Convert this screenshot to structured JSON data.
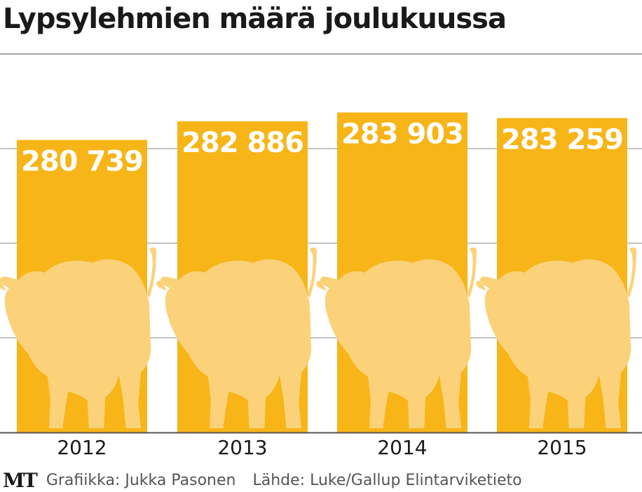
{
  "title": "Lypsylehmien määrä joulukuussa",
  "colors": {
    "bar": "#F7B518",
    "cow": "#FBD27A",
    "value_label": "#ffffff",
    "grid": "#888888",
    "axis": "#555555",
    "text": "#1a1a1a",
    "credit": "#555555"
  },
  "chart_data": {
    "type": "bar",
    "categories": [
      "2012",
      "2013",
      "2014",
      "2015"
    ],
    "values": [
      280739,
      282886,
      283903,
      283259
    ],
    "value_labels": [
      "280 739",
      "282 886",
      "283 903",
      "283 259"
    ],
    "grid": true,
    "bar_decoration": "cow-silhouette-icon"
  },
  "footer": {
    "logo": "MT",
    "graphic_credit": "Grafiikka: Jukka Pasonen",
    "source_credit": "Lähde: Luke/Gallup Elintarviketieto"
  }
}
